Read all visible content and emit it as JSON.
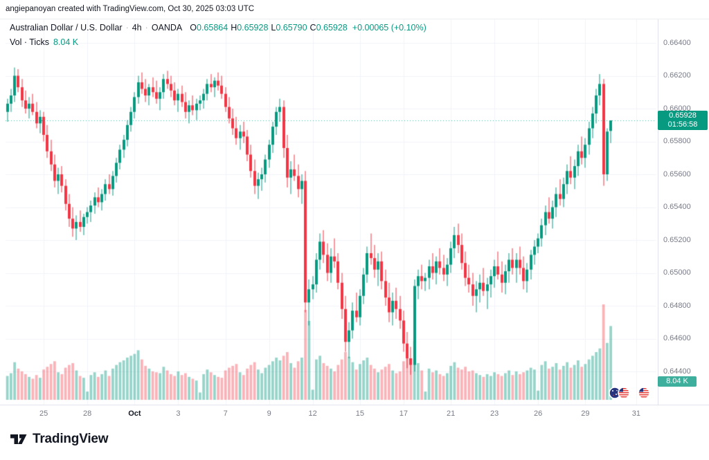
{
  "attribution": "angiepanoyan created with TradingView.com, Oct 30, 2025 03:03 UTC",
  "header": {
    "title": "Australian Dollar / U.S. Dollar",
    "sep": "·",
    "interval": "4h",
    "exchange": "OANDA",
    "o_label": "O",
    "o": "0.65864",
    "h_label": "H",
    "h": "0.65928",
    "l_label": "L",
    "l": "0.65790",
    "c_label": "C",
    "c": "0.65928",
    "change": "+0.00065 (+0.10%)",
    "vol_label": "Vol · Ticks",
    "vol_value": "8.04 K"
  },
  "price_axis": {
    "labels": [
      "0.66400",
      "0.66200",
      "0.66000",
      "0.65800",
      "0.65600",
      "0.65400",
      "0.65200",
      "0.65000",
      "0.64800",
      "0.64600",
      "0.64400"
    ],
    "badge": {
      "price": "0.65928",
      "countdown": "01:56:58"
    },
    "vol_badge": "8.04 K"
  },
  "time_axis": {
    "ticks": [
      {
        "label": "25",
        "i": 10
      },
      {
        "label": "28",
        "i": 22
      },
      {
        "label": "Oct",
        "i": 35,
        "bold": true
      },
      {
        "label": "3",
        "i": 47
      },
      {
        "label": "7",
        "i": 60
      },
      {
        "label": "9",
        "i": 72
      },
      {
        "label": "12",
        "i": 84
      },
      {
        "label": "15",
        "i": 97
      },
      {
        "label": "17",
        "i": 109
      },
      {
        "label": "21",
        "i": 122
      },
      {
        "label": "23",
        "i": 134
      },
      {
        "label": "26",
        "i": 146
      },
      {
        "label": "29",
        "i": 159
      },
      {
        "label": "31",
        "i": 173
      }
    ]
  },
  "logo": {
    "text": "TradingView"
  },
  "chart_data": {
    "type": "candlestick",
    "symbol": "AUD/USD",
    "timeframe": "4h",
    "title": "Australian Dollar / U.S. Dollar · 4h · OANDA",
    "price_range": {
      "top": 0.664,
      "bottom": 0.644,
      "grid_step": 0.002
    },
    "last_price": 0.65928,
    "last_volume_ticks": 8040,
    "price_divisor": 10000,
    "colors": {
      "up": "#089981",
      "down": "#f23645",
      "vol_up": "rgba(8,153,129,0.42)",
      "vol_down": "rgba(242,54,69,0.38)",
      "grid": "#f0f3fa",
      "axis_text": "#787b86"
    },
    "candles": [
      [
        6598,
        6606,
        6592,
        6603,
        2600
      ],
      [
        6603,
        6612,
        6598,
        6608,
        2900
      ],
      [
        6608,
        6625,
        6604,
        6620,
        4100
      ],
      [
        6620,
        6624,
        6610,
        6613,
        3400
      ],
      [
        6613,
        6618,
        6601,
        6605,
        3100
      ],
      [
        6605,
        6611,
        6597,
        6600,
        2800
      ],
      [
        6600,
        6607,
        6594,
        6603,
        2500
      ],
      [
        6603,
        6609,
        6596,
        6598,
        2300
      ],
      [
        6598,
        6604,
        6588,
        6591,
        2700
      ],
      [
        6591,
        6599,
        6585,
        6595,
        2400
      ],
      [
        6595,
        6598,
        6580,
        6584,
        3300
      ],
      [
        6584,
        6590,
        6570,
        6574,
        3600
      ],
      [
        6574,
        6581,
        6562,
        6566,
        3900
      ],
      [
        6566,
        6572,
        6552,
        6556,
        4200
      ],
      [
        6556,
        6564,
        6548,
        6560,
        3000
      ],
      [
        6560,
        6565,
        6549,
        6553,
        2800
      ],
      [
        6553,
        6557,
        6538,
        6542,
        3500
      ],
      [
        6542,
        6548,
        6528,
        6533,
        3800
      ],
      [
        6533,
        6540,
        6522,
        6527,
        4000
      ],
      [
        6527,
        6535,
        6520,
        6531,
        3200
      ],
      [
        6531,
        6538,
        6525,
        6528,
        2600
      ],
      [
        6528,
        6536,
        6523,
        6534,
        2400
      ],
      [
        6534,
        6540,
        6530,
        6537,
        900
      ],
      [
        6537,
        6544,
        6531,
        6541,
        2700
      ],
      [
        6541,
        6549,
        6536,
        6546,
        3000
      ],
      [
        6546,
        6552,
        6540,
        6543,
        2500
      ],
      [
        6543,
        6551,
        6538,
        6548,
        2800
      ],
      [
        6548,
        6557,
        6544,
        6554,
        3200
      ],
      [
        6554,
        6560,
        6548,
        6551,
        2600
      ],
      [
        6551,
        6562,
        6547,
        6559,
        3400
      ],
      [
        6559,
        6570,
        6555,
        6567,
        3800
      ],
      [
        6567,
        6578,
        6563,
        6575,
        4100
      ],
      [
        6575,
        6584,
        6570,
        6581,
        4300
      ],
      [
        6581,
        6593,
        6577,
        6590,
        4600
      ],
      [
        6590,
        6601,
        6586,
        6598,
        4800
      ],
      [
        6598,
        6610,
        6594,
        6607,
        5000
      ],
      [
        6607,
        6620,
        6603,
        6616,
        5400
      ],
      [
        6616,
        6622,
        6609,
        6612,
        4400
      ],
      [
        6612,
        6618,
        6604,
        6608,
        3700
      ],
      [
        6608,
        6615,
        6602,
        6613,
        3400
      ],
      [
        6613,
        6619,
        6607,
        6610,
        3100
      ],
      [
        6610,
        6617,
        6603,
        6606,
        3000
      ],
      [
        6606,
        6613,
        6599,
        6610,
        2900
      ],
      [
        6610,
        6621,
        6606,
        6618,
        3600
      ],
      [
        6618,
        6623,
        6612,
        6615,
        3200
      ],
      [
        6615,
        6620,
        6607,
        6611,
        2800
      ],
      [
        6611,
        6616,
        6602,
        6605,
        2600
      ],
      [
        6605,
        6612,
        6598,
        6609,
        3100
      ],
      [
        6609,
        6614,
        6601,
        6604,
        2700
      ],
      [
        6604,
        6610,
        6594,
        6598,
        2900
      ],
      [
        6598,
        6605,
        6591,
        6602,
        2500
      ],
      [
        6602,
        6608,
        6596,
        6599,
        2300
      ],
      [
        6599,
        6606,
        6593,
        6603,
        2100
      ],
      [
        6603,
        6608,
        6599,
        6605,
        800
      ],
      [
        6605,
        6612,
        6600,
        6609,
        2800
      ],
      [
        6609,
        6618,
        6605,
        6615,
        3300
      ],
      [
        6615,
        6621,
        6610,
        6613,
        3000
      ],
      [
        6613,
        6619,
        6607,
        6617,
        2700
      ],
      [
        6617,
        6622,
        6611,
        6614,
        2500
      ],
      [
        6614,
        6620,
        6606,
        6609,
        2400
      ],
      [
        6609,
        6613,
        6598,
        6601,
        3200
      ],
      [
        6601,
        6607,
        6591,
        6594,
        3500
      ],
      [
        6594,
        6600,
        6584,
        6588,
        3700
      ],
      [
        6588,
        6595,
        6578,
        6582,
        3900
      ],
      [
        6582,
        6590,
        6575,
        6586,
        3000
      ],
      [
        6586,
        6592,
        6579,
        6583,
        2700
      ],
      [
        6583,
        6587,
        6568,
        6572,
        3400
      ],
      [
        6572,
        6578,
        6558,
        6562,
        3800
      ],
      [
        6562,
        6569,
        6548,
        6553,
        4100
      ],
      [
        6553,
        6561,
        6545,
        6557,
        3300
      ],
      [
        6557,
        6564,
        6550,
        6560,
        2900
      ],
      [
        6560,
        6572,
        6555,
        6569,
        3500
      ],
      [
        6569,
        6581,
        6564,
        6578,
        3800
      ],
      [
        6578,
        6592,
        6573,
        6589,
        4200
      ],
      [
        6589,
        6601,
        6584,
        6598,
        4600
      ],
      [
        6598,
        6606,
        6592,
        6601,
        4300
      ],
      [
        6601,
        6605,
        6570,
        6576,
        4800
      ],
      [
        6576,
        6584,
        6552,
        6558,
        5200
      ],
      [
        6558,
        6568,
        6548,
        6563,
        4000
      ],
      [
        6563,
        6572,
        6556,
        6559,
        3500
      ],
      [
        6559,
        6566,
        6546,
        6551,
        4200
      ],
      [
        6551,
        6560,
        6542,
        6556,
        4600
      ],
      [
        6556,
        6562,
        6476,
        6482,
        9800
      ],
      [
        6482,
        6496,
        6468,
        6490,
        8600
      ],
      [
        6490,
        6498,
        6484,
        6493,
        1100
      ],
      [
        6493,
        6512,
        6488,
        6508,
        4400
      ],
      [
        6508,
        6524,
        6502,
        6519,
        4800
      ],
      [
        6519,
        6526,
        6506,
        6511,
        4000
      ],
      [
        6511,
        6518,
        6495,
        6500,
        3700
      ],
      [
        6500,
        6515,
        6494,
        6510,
        3400
      ],
      [
        6510,
        6521,
        6503,
        6507,
        3100
      ],
      [
        6507,
        6512,
        6490,
        6494,
        3800
      ],
      [
        6494,
        6500,
        6472,
        6478,
        4400
      ],
      [
        6478,
        6486,
        6452,
        6458,
        5200
      ],
      [
        6458,
        6470,
        6448,
        6465,
        4700
      ],
      [
        6465,
        6482,
        6460,
        6477,
        4100
      ],
      [
        6477,
        6488,
        6470,
        6473,
        3300
      ],
      [
        6473,
        6490,
        6468,
        6486,
        3900
      ],
      [
        6486,
        6503,
        6481,
        6499,
        4300
      ],
      [
        6499,
        6516,
        6494,
        6512,
        4600
      ],
      [
        6512,
        6524,
        6505,
        6509,
        3800
      ],
      [
        6509,
        6517,
        6497,
        6502,
        3400
      ],
      [
        6502,
        6512,
        6492,
        6507,
        3000
      ],
      [
        6507,
        6513,
        6490,
        6495,
        3300
      ],
      [
        6495,
        6502,
        6480,
        6485,
        3600
      ],
      [
        6485,
        6494,
        6470,
        6476,
        3900
      ],
      [
        6476,
        6488,
        6468,
        6483,
        3200
      ],
      [
        6483,
        6491,
        6472,
        6478,
        2900
      ],
      [
        6478,
        6486,
        6466,
        6471,
        3100
      ],
      [
        6471,
        6477,
        6452,
        6457,
        4200
      ],
      [
        6457,
        6464,
        6442,
        6448,
        4800
      ],
      [
        6448,
        6455,
        6438,
        6444,
        4400
      ],
      [
        6444,
        6496,
        6440,
        6492,
        6400
      ],
      [
        6492,
        6502,
        6484,
        6498,
        4000
      ],
      [
        6498,
        6505,
        6490,
        6495,
        3200
      ],
      [
        6495,
        6500,
        6489,
        6497,
        900
      ],
      [
        6497,
        6508,
        6490,
        6504,
        3400
      ],
      [
        6504,
        6512,
        6496,
        6500,
        3000
      ],
      [
        6500,
        6510,
        6493,
        6507,
        3200
      ],
      [
        6507,
        6515,
        6499,
        6503,
        2800
      ],
      [
        6503,
        6511,
        6495,
        6499,
        2600
      ],
      [
        6499,
        6509,
        6492,
        6505,
        2900
      ],
      [
        6505,
        6519,
        6500,
        6515,
        3700
      ],
      [
        6515,
        6528,
        6509,
        6523,
        4100
      ],
      [
        6523,
        6530,
        6512,
        6517,
        3500
      ],
      [
        6517,
        6524,
        6502,
        6506,
        3300
      ],
      [
        6506,
        6513,
        6492,
        6497,
        3600
      ],
      [
        6497,
        6505,
        6488,
        6493,
        3100
      ],
      [
        6493,
        6500,
        6480,
        6486,
        3200
      ],
      [
        6486,
        6495,
        6476,
        6490,
        2900
      ],
      [
        6490,
        6499,
        6482,
        6494,
        2700
      ],
      [
        6494,
        6503,
        6486,
        6489,
        2500
      ],
      [
        6489,
        6497,
        6478,
        6493,
        2800
      ],
      [
        6493,
        6502,
        6485,
        6498,
        2600
      ],
      [
        6498,
        6508,
        6491,
        6504,
        3000
      ],
      [
        6504,
        6513,
        6496,
        6499,
        2800
      ],
      [
        6499,
        6507,
        6488,
        6494,
        2600
      ],
      [
        6494,
        6505,
        6487,
        6501,
        2900
      ],
      [
        6501,
        6512,
        6494,
        6508,
        3200
      ],
      [
        6508,
        6515,
        6499,
        6503,
        2700
      ],
      [
        6503,
        6512,
        6494,
        6508,
        3100
      ],
      [
        6508,
        6516,
        6499,
        6503,
        2800
      ],
      [
        6503,
        6510,
        6490,
        6495,
        3000
      ],
      [
        6495,
        6506,
        6488,
        6502,
        3200
      ],
      [
        6502,
        6514,
        6496,
        6511,
        3500
      ],
      [
        6511,
        6520,
        6505,
        6516,
        3300
      ],
      [
        6516,
        6524,
        6512,
        6521,
        1000
      ],
      [
        6521,
        6533,
        6516,
        6529,
        3800
      ],
      [
        6529,
        6541,
        6523,
        6537,
        4200
      ],
      [
        6537,
        6546,
        6530,
        6533,
        3400
      ],
      [
        6533,
        6544,
        6527,
        6540,
        3600
      ],
      [
        6540,
        6552,
        6534,
        6548,
        4000
      ],
      [
        6548,
        6557,
        6541,
        6545,
        3300
      ],
      [
        6545,
        6558,
        6540,
        6554,
        3700
      ],
      [
        6554,
        6566,
        6548,
        6562,
        4100
      ],
      [
        6562,
        6571,
        6554,
        6558,
        3500
      ],
      [
        6558,
        6569,
        6551,
        6565,
        3800
      ],
      [
        6565,
        6578,
        6559,
        6574,
        4300
      ],
      [
        6574,
        6583,
        6566,
        6570,
        3600
      ],
      [
        6570,
        6582,
        6564,
        6578,
        3900
      ],
      [
        6578,
        6592,
        6572,
        6588,
        4400
      ],
      [
        6588,
        6601,
        6582,
        6597,
        4800
      ],
      [
        6597,
        6612,
        6591,
        6608,
        5200
      ],
      [
        6608,
        6621,
        6602,
        6615,
        5600
      ],
      [
        6615,
        6618,
        6553,
        6560,
        10400
      ],
      [
        6560,
        6588,
        6556,
        6586,
        6200
      ],
      [
        6586.4,
        6592.8,
        6579,
        6592.8,
        8040
      ]
    ]
  }
}
